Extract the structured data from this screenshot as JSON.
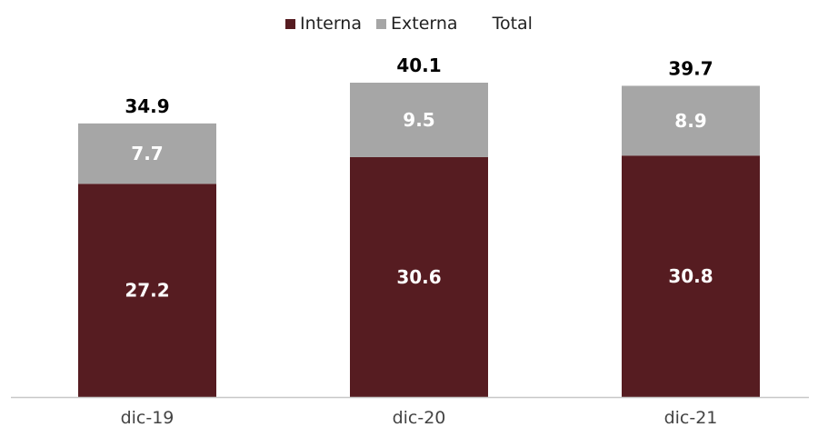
{
  "legend": {
    "interna": "Interna",
    "externa": "Externa",
    "total": "Total"
  },
  "colors": {
    "interna": "#561c21",
    "externa": "#a6a6a6",
    "axis": "#c8c8c8",
    "label_inside": "#ffffff",
    "label_total": "#000000",
    "category_text": "#444444"
  },
  "chart_data": {
    "type": "bar",
    "stacked": true,
    "categories": [
      "dic-19",
      "dic-20",
      "dic-21"
    ],
    "series": [
      {
        "name": "Interna",
        "values": [
          27.2,
          30.6,
          30.8
        ]
      },
      {
        "name": "Externa",
        "values": [
          7.7,
          9.5,
          8.9
        ]
      }
    ],
    "totals": [
      34.9,
      40.1,
      39.7
    ],
    "total_label": "Total",
    "ylim": [
      0,
      40.1
    ],
    "legend_position": "top-center",
    "grid": false,
    "title": "",
    "xlabel": "",
    "ylabel": ""
  }
}
